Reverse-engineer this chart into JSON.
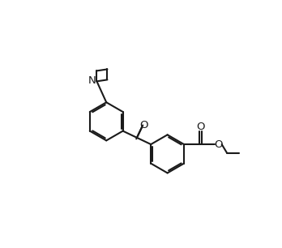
{
  "bg_color": "#ffffff",
  "line_color": "#1a1a1a",
  "line_width": 1.5,
  "fig_width": 3.48,
  "fig_height": 3.06,
  "dpi": 100,
  "xlim": [
    0,
    10
  ],
  "ylim": [
    0,
    10
  ]
}
